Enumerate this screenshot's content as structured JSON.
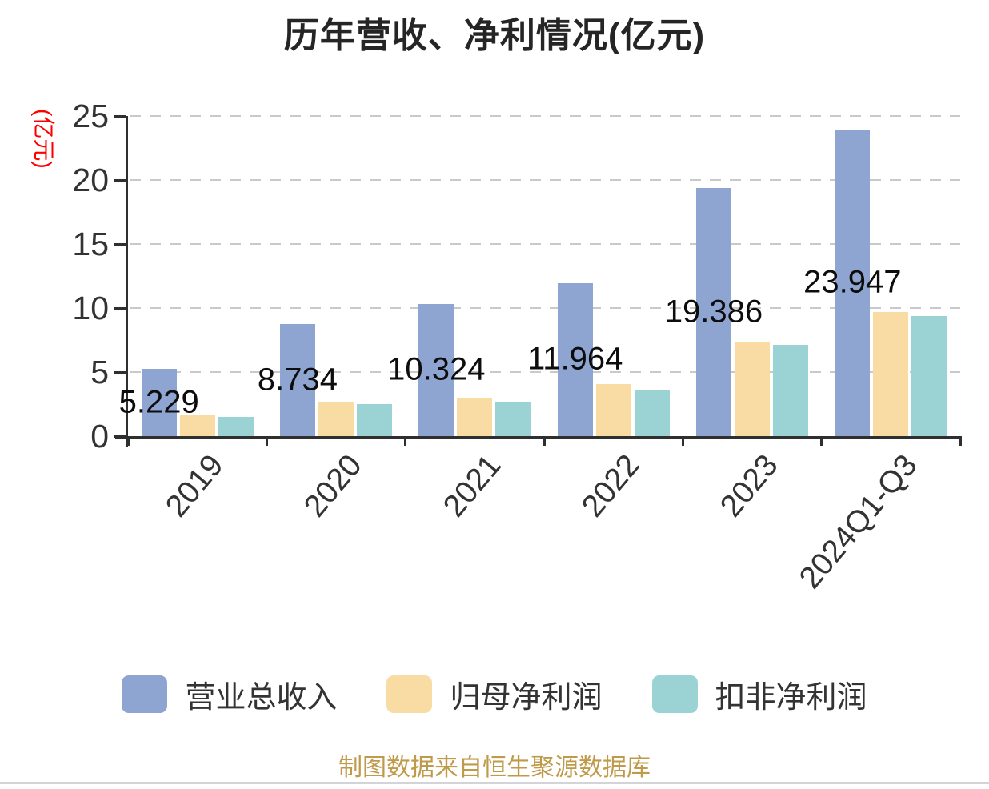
{
  "header": {
    "title": "历年营收、净利情况(亿元)"
  },
  "chart_data": {
    "type": "bar",
    "title": "历年营收、净利情况(亿元)",
    "categories": [
      "2019",
      "2020",
      "2021",
      "2022",
      "2023",
      "2024Q1-Q3"
    ],
    "series": [
      {
        "name": "营业总收入",
        "color": "#8fa5d1",
        "values": [
          5.229,
          8.734,
          10.324,
          11.964,
          19.386,
          23.947
        ],
        "data_labels": [
          "5.229",
          "8.734",
          "10.324",
          "11.964",
          "19.386",
          "23.947"
        ]
      },
      {
        "name": "归母净利润",
        "color": "#f9dca4",
        "values": [
          1.63,
          2.71,
          3.0,
          4.05,
          7.3,
          9.7
        ]
      },
      {
        "name": "扣非净利润",
        "color": "#9bd3d4",
        "values": [
          1.48,
          2.5,
          2.67,
          3.64,
          7.15,
          9.4
        ]
      }
    ],
    "ylim": [
      0,
      25
    ],
    "y_ticks": [
      0,
      5,
      10,
      15,
      20,
      25
    ],
    "y_axis_name": "(亿元)",
    "y_axis_name_color": "#ff0000",
    "grid": "horizontal-dashed",
    "legend_position": "bottom",
    "axis_color": "#2f2f2f",
    "gridline_color": "#c9c9c9",
    "label_color": "#0d0d0d"
  },
  "footer": {
    "source": "制图数据来自恒生聚源数据库"
  }
}
